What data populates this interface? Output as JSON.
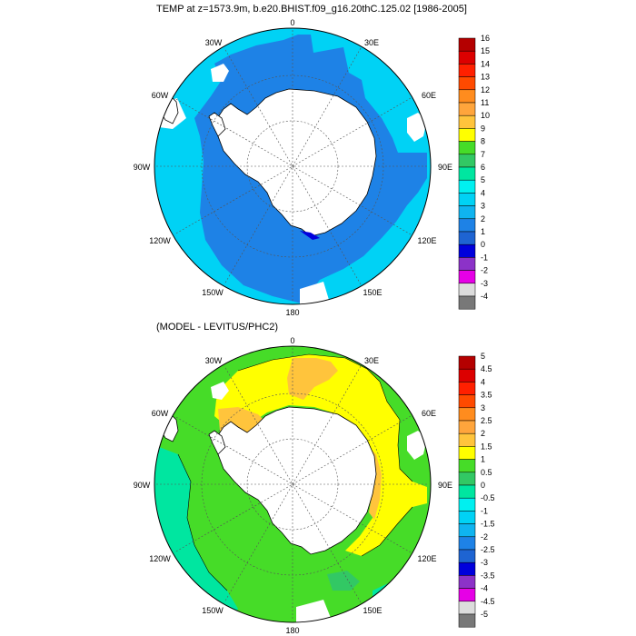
{
  "panels": [
    {
      "title": "TEMP at z=1573.9m, b.e20.BHIST.f09_g16.20thC.125.02 [1986-2005]",
      "lon_labels": [
        "0",
        "30E",
        "60E",
        "90E",
        "120E",
        "150E",
        "180",
        "150W",
        "120W",
        "90W",
        "60W",
        "30W"
      ],
      "colorbar": {
        "labels": [
          "16",
          "15",
          "14",
          "13",
          "12",
          "11",
          "10",
          "9",
          "8",
          "7",
          "6",
          "5",
          "4",
          "3",
          "2",
          "1",
          "0",
          "-1",
          "-2",
          "-3",
          "-4"
        ],
        "colors": [
          "#b40000",
          "#dc0000",
          "#ff2000",
          "#ff4a00",
          "#ff8c1e",
          "#ffa53c",
          "#ffc43c",
          "#ffff00",
          "#46dc28",
          "#32c864",
          "#00e6a0",
          "#00f0f0",
          "#00d2f5",
          "#0fb4f0",
          "#1e82e6",
          "#1e64d2",
          "#0000dc",
          "#8c32c8",
          "#e600e6",
          "#dcdcdc",
          "#787878"
        ]
      }
    },
    {
      "title": "(MODEL - LEVITUS/PHC2)",
      "lon_labels": [
        "0",
        "30E",
        "60E",
        "90E",
        "120E",
        "150E",
        "180",
        "150W",
        "120W",
        "90W",
        "60W",
        "30W"
      ],
      "colorbar": {
        "labels": [
          "5",
          "4.5",
          "4",
          "3.5",
          "3",
          "2.5",
          "2",
          "1.5",
          "1",
          "0.5",
          "0",
          "-0.5",
          "-1",
          "-1.5",
          "-2",
          "-2.5",
          "-3",
          "-3.5",
          "-4",
          "-4.5",
          "-5"
        ],
        "colors": [
          "#b40000",
          "#dc0000",
          "#ff2000",
          "#ff4a00",
          "#ff8c1e",
          "#ffa53c",
          "#ffc43c",
          "#ffff00",
          "#46dc28",
          "#32c864",
          "#00e6a0",
          "#00f0f0",
          "#00d2f5",
          "#0fb4f0",
          "#1e82e6",
          "#1e64d2",
          "#0000dc",
          "#8c32c8",
          "#e600e6",
          "#dcdcdc",
          "#787878"
        ]
      }
    }
  ]
}
